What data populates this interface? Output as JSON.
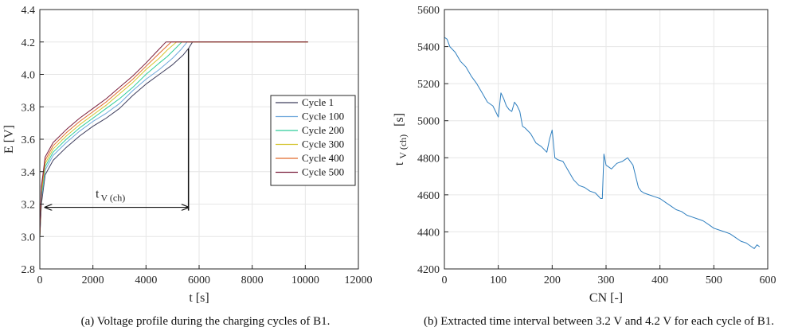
{
  "chart_data": [
    {
      "type": "line",
      "xlabel": "t [s]",
      "ylabel": "E [V]",
      "xlim": [
        0,
        12000
      ],
      "ylim": [
        2.8,
        4.4
      ],
      "xticks": [
        0,
        2000,
        4000,
        6000,
        8000,
        10000,
        12000
      ],
      "yticks": [
        2.8,
        3.0,
        3.2,
        3.4,
        3.6,
        3.8,
        4.0,
        4.2,
        4.4
      ],
      "xtick_labels": [
        "0",
        "2000",
        "4000",
        "6000",
        "8000",
        "10000",
        "12000"
      ],
      "ytick_labels": [
        "2.8",
        "3.0",
        "3.2",
        "3.4",
        "3.6",
        "3.8",
        "4.0",
        "4.2",
        "4.4"
      ],
      "grid": true,
      "legend_position": "right",
      "series": [
        {
          "name": "Cycle 1",
          "color": "#3d3d5c",
          "x": [
            0,
            60,
            200,
            500,
            1000,
            1500,
            2000,
            2500,
            3000,
            3500,
            4000,
            4500,
            5000,
            5400,
            5600,
            5750,
            10100
          ],
          "y": [
            3.0,
            3.2,
            3.38,
            3.47,
            3.55,
            3.62,
            3.68,
            3.73,
            3.79,
            3.87,
            3.94,
            4.0,
            4.06,
            4.12,
            4.16,
            4.2,
            4.2
          ]
        },
        {
          "name": "Cycle 100",
          "color": "#6fa8dc",
          "x": [
            0,
            60,
            200,
            500,
            1000,
            1500,
            2000,
            2500,
            3000,
            3500,
            4000,
            4500,
            5000,
            5300,
            5550,
            10100
          ],
          "y": [
            3.0,
            3.23,
            3.41,
            3.5,
            3.58,
            3.65,
            3.71,
            3.76,
            3.82,
            3.9,
            3.97,
            4.03,
            4.1,
            4.15,
            4.2,
            4.2
          ]
        },
        {
          "name": "Cycle 200",
          "color": "#2ecc9a",
          "x": [
            0,
            60,
            200,
            500,
            1000,
            1500,
            2000,
            2500,
            3000,
            3500,
            4000,
            4500,
            4800,
            5050,
            5350,
            10100
          ],
          "y": [
            3.0,
            3.25,
            3.43,
            3.52,
            3.6,
            3.67,
            3.73,
            3.79,
            3.85,
            3.92,
            4.0,
            4.07,
            4.11,
            4.15,
            4.2,
            4.2
          ]
        },
        {
          "name": "Cycle 300",
          "color": "#d4c530",
          "x": [
            0,
            60,
            200,
            500,
            1000,
            1500,
            2000,
            2500,
            3000,
            3500,
            4000,
            4500,
            4800,
            5150,
            10100
          ],
          "y": [
            3.0,
            3.27,
            3.45,
            3.54,
            3.62,
            3.69,
            3.75,
            3.81,
            3.88,
            3.95,
            4.03,
            4.1,
            4.15,
            4.2,
            4.2
          ]
        },
        {
          "name": "Cycle 400",
          "color": "#e26a2c",
          "x": [
            0,
            60,
            200,
            500,
            1000,
            1500,
            2000,
            2500,
            3000,
            3500,
            4000,
            4500,
            4950,
            10100
          ],
          "y": [
            3.0,
            3.29,
            3.47,
            3.56,
            3.64,
            3.71,
            3.77,
            3.83,
            3.9,
            3.97,
            4.05,
            4.13,
            4.2,
            4.2
          ]
        },
        {
          "name": "Cycle 500",
          "color": "#7a1f3d",
          "x": [
            0,
            60,
            200,
            500,
            1000,
            1500,
            2000,
            2500,
            3000,
            3500,
            4000,
            4400,
            4750,
            10100
          ],
          "y": [
            3.0,
            3.31,
            3.49,
            3.58,
            3.66,
            3.73,
            3.79,
            3.85,
            3.92,
            3.99,
            4.07,
            4.14,
            4.2,
            4.2
          ]
        }
      ],
      "annotation": {
        "label_main": "t",
        "label_sub": "V (ch)",
        "x_start": 200,
        "x_end": 5600,
        "y": 3.18,
        "vline_x": 5600,
        "vline_y_top": 4.16,
        "vline_y_bottom": 3.16
      },
      "caption": "(a) Voltage profile during the charging cycles of B1."
    },
    {
      "type": "line",
      "xlabel": "CN [-]",
      "ylabel_main": "t",
      "ylabel_sub": "V (ch)",
      "ylabel_unit": "[s]",
      "xlim": [
        0,
        600
      ],
      "ylim": [
        4200,
        5600
      ],
      "xticks": [
        0,
        100,
        200,
        300,
        400,
        500,
        600
      ],
      "yticks": [
        4200,
        4400,
        4600,
        4800,
        5000,
        5200,
        5400,
        5600
      ],
      "xtick_labels": [
        "0",
        "100",
        "200",
        "300",
        "400",
        "500",
        "600"
      ],
      "ytick_labels": [
        "4200",
        "4400",
        "4600",
        "4800",
        "5000",
        "5200",
        "5400",
        "5600"
      ],
      "grid": true,
      "series": [
        {
          "name": "",
          "color": "#2f7fbf",
          "x": [
            0,
            5,
            10,
            20,
            30,
            40,
            50,
            60,
            70,
            80,
            90,
            95,
            100,
            105,
            110,
            115,
            120,
            125,
            130,
            135,
            140,
            145,
            150,
            160,
            170,
            180,
            190,
            195,
            200,
            205,
            210,
            220,
            230,
            240,
            250,
            260,
            270,
            280,
            290,
            293,
            296,
            300,
            310,
            320,
            330,
            340,
            350,
            355,
            360,
            365,
            370,
            380,
            390,
            400,
            410,
            420,
            430,
            440,
            450,
            460,
            470,
            480,
            490,
            500,
            510,
            520,
            530,
            540,
            550,
            560,
            570,
            575,
            580,
            585
          ],
          "y": [
            5450,
            5440,
            5400,
            5370,
            5320,
            5290,
            5240,
            5200,
            5150,
            5100,
            5080,
            5050,
            5020,
            5150,
            5120,
            5080,
            5060,
            5050,
            5100,
            5080,
            5050,
            4970,
            4960,
            4930,
            4880,
            4860,
            4830,
            4900,
            4950,
            4800,
            4790,
            4780,
            4730,
            4680,
            4650,
            4640,
            4620,
            4610,
            4580,
            4580,
            4820,
            4760,
            4740,
            4770,
            4780,
            4800,
            4760,
            4700,
            4640,
            4620,
            4610,
            4600,
            4590,
            4580,
            4560,
            4540,
            4520,
            4510,
            4490,
            4480,
            4470,
            4460,
            4440,
            4420,
            4410,
            4400,
            4390,
            4370,
            4350,
            4340,
            4320,
            4310,
            4330,
            4320
          ]
        }
      ],
      "caption": "(b) Extracted time interval between 3.2 V and 4.2 V for each cycle of B1."
    }
  ]
}
